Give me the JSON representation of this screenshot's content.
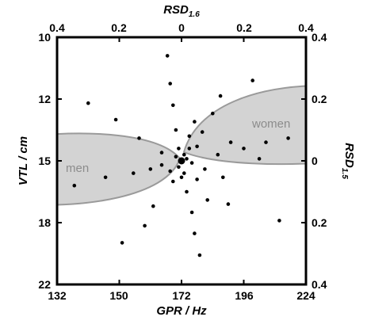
{
  "chart_data": {
    "type": "scatter",
    "xlabel": {
      "main": "GPR / Hz"
    },
    "ylabel": {
      "main": "VTL / cm"
    },
    "top_label": {
      "main": "RSD",
      "sub": "1.6"
    },
    "right_label": {
      "main": "RSD",
      "sub": "1.5"
    },
    "x_ticks": [
      "132",
      "150",
      "172",
      "196",
      "224"
    ],
    "y_ticks": [
      "10",
      "12",
      "15",
      "18",
      "22"
    ],
    "top_ticks": [
      "0.4",
      "0.2",
      "0",
      "0.2",
      "0.4"
    ],
    "right_ticks": [
      "0.4",
      "0.2",
      "0",
      "0.2",
      "0.4"
    ],
    "regions": [
      {
        "name": "men",
        "label": "men",
        "fill": "#d3d3d3",
        "stroke": "#9a9a9a"
      },
      {
        "name": "women",
        "label": "women",
        "fill": "#d3d3d3",
        "stroke": "#9a9a9a"
      }
    ],
    "center_point": {
      "x": 172,
      "y": 15
    },
    "points": [
      {
        "x": 137,
        "y": 16.2
      },
      {
        "x": 141,
        "y": 12.2
      },
      {
        "x": 146,
        "y": 15.8
      },
      {
        "x": 149,
        "y": 13.0
      },
      {
        "x": 151,
        "y": 19.3
      },
      {
        "x": 155,
        "y": 15.6
      },
      {
        "x": 157,
        "y": 13.9
      },
      {
        "x": 159,
        "y": 18.2
      },
      {
        "x": 161,
        "y": 15.4
      },
      {
        "x": 162,
        "y": 17.2
      },
      {
        "x": 165,
        "y": 14.6
      },
      {
        "x": 165,
        "y": 15.2
      },
      {
        "x": 167,
        "y": 10.6
      },
      {
        "x": 168,
        "y": 11.5
      },
      {
        "x": 168,
        "y": 15.5
      },
      {
        "x": 169,
        "y": 16.0
      },
      {
        "x": 169,
        "y": 12.3
      },
      {
        "x": 170,
        "y": 13.5
      },
      {
        "x": 170,
        "y": 14.8
      },
      {
        "x": 171,
        "y": 15.3
      },
      {
        "x": 171,
        "y": 14.4
      },
      {
        "x": 172,
        "y": 15.8
      },
      {
        "x": 173,
        "y": 14.7
      },
      {
        "x": 173,
        "y": 15.6
      },
      {
        "x": 174,
        "y": 14.9
      },
      {
        "x": 174,
        "y": 16.5
      },
      {
        "x": 175,
        "y": 13.8
      },
      {
        "x": 175,
        "y": 14.4
      },
      {
        "x": 176,
        "y": 15.1
      },
      {
        "x": 176,
        "y": 17.5
      },
      {
        "x": 177,
        "y": 13.1
      },
      {
        "x": 177,
        "y": 18.7
      },
      {
        "x": 178,
        "y": 15.9
      },
      {
        "x": 178,
        "y": 14.3
      },
      {
        "x": 179,
        "y": 20.1
      },
      {
        "x": 180,
        "y": 13.6
      },
      {
        "x": 181,
        "y": 15.4
      },
      {
        "x": 182,
        "y": 16.9
      },
      {
        "x": 184,
        "y": 12.7
      },
      {
        "x": 186,
        "y": 14.7
      },
      {
        "x": 187,
        "y": 11.9
      },
      {
        "x": 188,
        "y": 15.8
      },
      {
        "x": 190,
        "y": 17.1
      },
      {
        "x": 191,
        "y": 14.1
      },
      {
        "x": 196,
        "y": 14.4
      },
      {
        "x": 200,
        "y": 11.4
      },
      {
        "x": 203,
        "y": 14.9
      },
      {
        "x": 206,
        "y": 14.1
      },
      {
        "x": 212,
        "y": 17.9
      },
      {
        "x": 216,
        "y": 13.9
      }
    ]
  }
}
